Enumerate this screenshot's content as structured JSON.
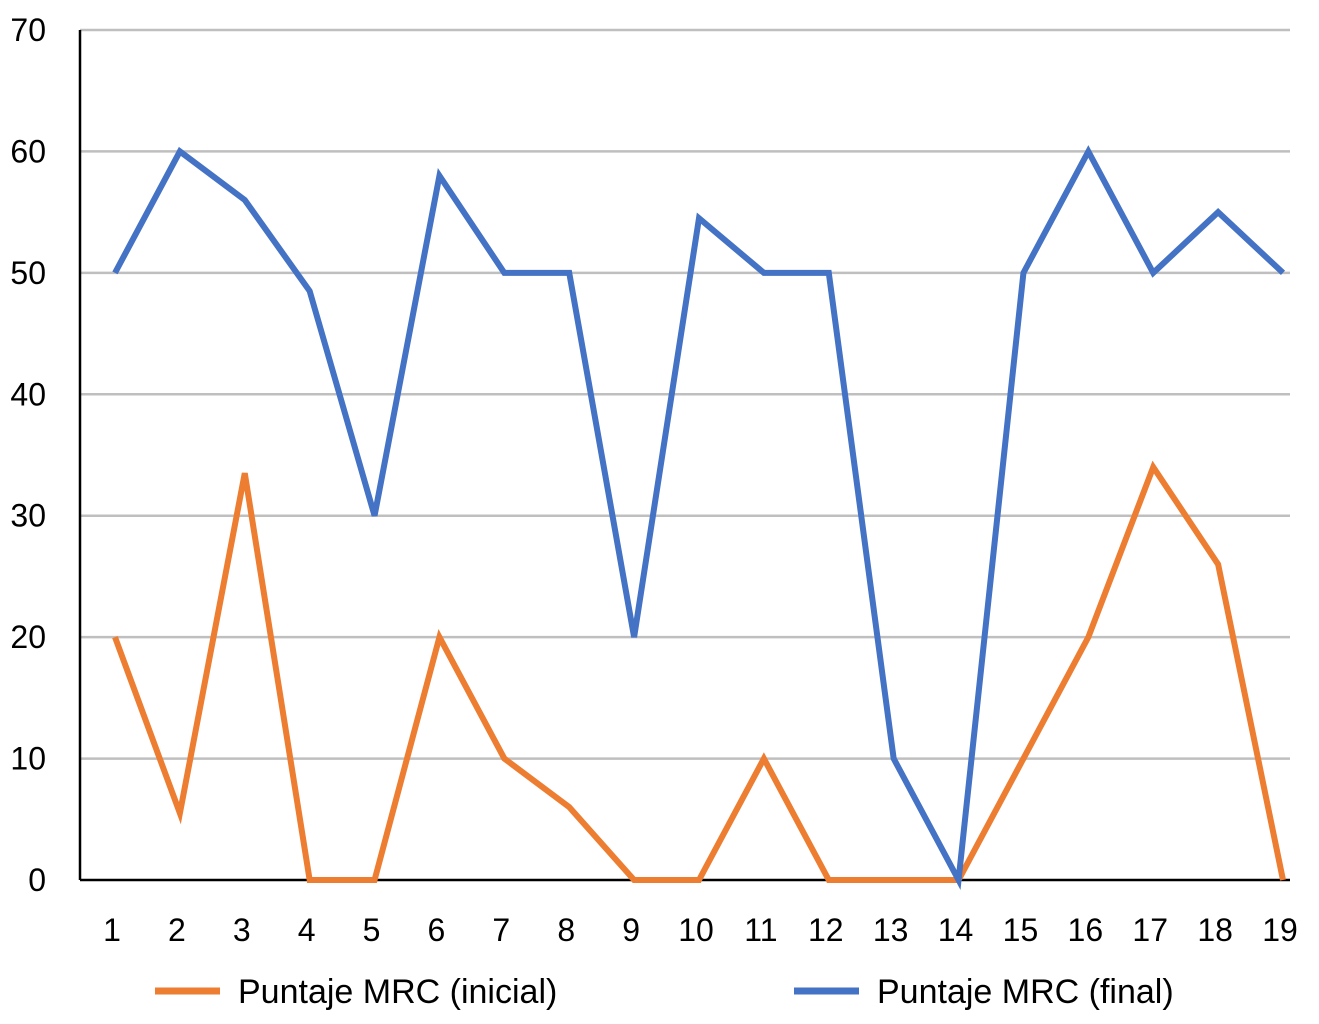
{
  "chart_data": {
    "type": "line",
    "categories": [
      "1",
      "2",
      "3",
      "4",
      "5",
      "6",
      "7",
      "8",
      "9",
      "10",
      "11",
      "12",
      "13",
      "14",
      "15",
      "16",
      "17",
      "18",
      "19"
    ],
    "ylim": [
      0,
      70
    ],
    "yticks": [
      0,
      10,
      20,
      30,
      40,
      50,
      60,
      70
    ],
    "grid": true,
    "legend_position": "bottom",
    "xlabel": "",
    "ylabel": "",
    "title": "",
    "series": [
      {
        "name": "Puntaje MRC (inicial)",
        "color": "#ED7D31",
        "values": [
          20,
          5.5,
          33.5,
          0,
          0,
          20,
          10,
          6,
          0,
          0,
          10,
          0,
          0,
          0,
          10,
          20,
          34,
          26,
          0
        ]
      },
      {
        "name": "Puntaje MRC (final)",
        "color": "#4472C4",
        "values": [
          50,
          60,
          56,
          48.5,
          30,
          58,
          50,
          50,
          20,
          54.5,
          50,
          50,
          10,
          0,
          50,
          60,
          50,
          55,
          50
        ]
      }
    ]
  }
}
